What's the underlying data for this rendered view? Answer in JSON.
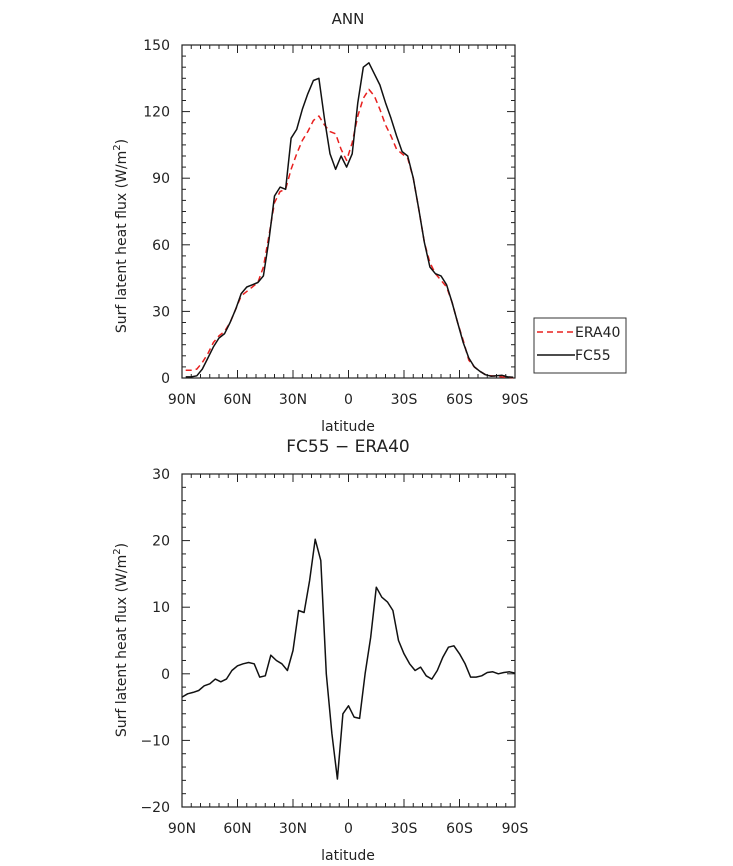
{
  "chart_data": [
    {
      "type": "line",
      "title": "ANN",
      "xlabel": "latitude",
      "ylabel": "Surf latent heat flux (W/m",
      "ylabel_sup": "2",
      "ylabel_end": ")",
      "xlim": [
        90,
        -90
      ],
      "ylim": [
        0,
        150
      ],
      "x_ticks": [
        90,
        60,
        30,
        0,
        -30,
        -60,
        -90
      ],
      "x_tick_labels": [
        "90N",
        "60N",
        "30N",
        "0",
        "30S",
        "60S",
        "90S"
      ],
      "y_ticks": [
        0,
        30,
        60,
        90,
        120,
        150
      ],
      "y_tick_labels": [
        "0",
        "30",
        "60",
        "90",
        "120",
        "150"
      ],
      "legend": "right",
      "series": [
        {
          "name": "ERA40",
          "color": "#e8201f",
          "dash": true,
          "x": [
            88,
            85,
            82,
            79,
            76,
            73,
            70,
            67,
            64,
            61,
            58,
            55,
            52,
            49,
            46,
            43,
            40,
            37,
            34,
            31,
            28,
            25,
            22,
            19,
            16,
            13,
            10,
            7,
            4,
            1,
            -2,
            -5,
            -8,
            -11,
            -14,
            -17,
            -20,
            -23,
            -26,
            -29,
            -32,
            -35,
            -38,
            -41,
            -44,
            -47,
            -50,
            -53,
            -56,
            -59,
            -62,
            -65,
            -68,
            -71,
            -74,
            -77,
            -80,
            -83,
            -86,
            -89
          ],
          "y": [
            3.5,
            3.5,
            4,
            7,
            11,
            16,
            19,
            21,
            25,
            31,
            37,
            39,
            41,
            43,
            50,
            64,
            79,
            84,
            85,
            94,
            101,
            107,
            111,
            116,
            118,
            114,
            111,
            110,
            103,
            98,
            106,
            118,
            126,
            130,
            127,
            121,
            114,
            109,
            103,
            101,
            99,
            90,
            76,
            61,
            52,
            47,
            44,
            41,
            34,
            25,
            17,
            8,
            5,
            3,
            1.5,
            1,
            0.8,
            0.5,
            0.3,
            0.2
          ]
        },
        {
          "name": "FC55",
          "color": "#111111",
          "dash": false,
          "x": [
            88,
            85,
            82,
            79,
            76,
            73,
            70,
            67,
            64,
            61,
            58,
            55,
            52,
            49,
            46,
            43,
            40,
            37,
            34,
            31,
            28,
            25,
            22,
            19,
            16,
            13,
            10,
            7,
            4,
            1,
            -2,
            -5,
            -8,
            -11,
            -14,
            -17,
            -20,
            -23,
            -26,
            -29,
            -32,
            -35,
            -38,
            -41,
            -44,
            -47,
            -50,
            -53,
            -56,
            -59,
            -62,
            -65,
            -68,
            -71,
            -74,
            -77,
            -80,
            -83,
            -86,
            -89
          ],
          "y": [
            0.5,
            0.5,
            1,
            4,
            9,
            14,
            18,
            20,
            25,
            31,
            38,
            41,
            42,
            43,
            46,
            62,
            82,
            86,
            85,
            108,
            112,
            121,
            128,
            134,
            135,
            117,
            101,
            94,
            100,
            95,
            101,
            124,
            140,
            142,
            137,
            132,
            124,
            117,
            109,
            102,
            100,
            90,
            76,
            61,
            50,
            47,
            46,
            42,
            34,
            25,
            16,
            9,
            5,
            3,
            1.5,
            0.8,
            1,
            1.2,
            0.5,
            0.3
          ]
        }
      ]
    },
    {
      "type": "line",
      "title": "FC55 − ERA40",
      "xlabel": "latitude",
      "ylabel": "Surf latent heat flux (W/m",
      "ylabel_sup": "2",
      "ylabel_end": ")",
      "xlim": [
        90,
        -90
      ],
      "ylim": [
        -20,
        30
      ],
      "x_ticks": [
        90,
        60,
        30,
        0,
        -30,
        -60,
        -90
      ],
      "x_tick_labels": [
        "90N",
        "60N",
        "30N",
        "0",
        "30S",
        "60S",
        "90S"
      ],
      "y_ticks": [
        -20,
        -10,
        0,
        10,
        20,
        30
      ],
      "y_tick_labels": [
        "−20",
        "−10",
        "0",
        "10",
        "20",
        "30"
      ],
      "series": [
        {
          "color": "#111111",
          "dash": false,
          "x": [
            90,
            87,
            84,
            81,
            78,
            75,
            72,
            69,
            66,
            63,
            60,
            57,
            54,
            51,
            48,
            45,
            42,
            39,
            36,
            33,
            30,
            27,
            24,
            21,
            18,
            15,
            12,
            9,
            6,
            3,
            0,
            -3,
            -6,
            -9,
            -12,
            -15,
            -18,
            -21,
            -24,
            -27,
            -30,
            -33,
            -36,
            -39,
            -42,
            -45,
            -48,
            -51,
            -54,
            -57,
            -60,
            -63,
            -66,
            -69,
            -72,
            -75,
            -78,
            -81,
            -84,
            -87,
            -90
          ],
          "y": [
            -3.5,
            -3,
            -2.8,
            -2.5,
            -1.8,
            -1.5,
            -0.8,
            -1.2,
            -0.8,
            0.5,
            1.2,
            1.5,
            1.7,
            1.5,
            -0.5,
            -0.3,
            2.8,
            2,
            1.5,
            0.5,
            3.5,
            9.5,
            9.2,
            14,
            20.2,
            17,
            0,
            -9,
            -15.8,
            -6,
            -4.8,
            -6.5,
            -6.7,
            0,
            5.5,
            13,
            11.5,
            10.8,
            9.5,
            5,
            3,
            1.5,
            0.5,
            1,
            -0.3,
            -0.8,
            0.5,
            2.5,
            4,
            4.2,
            3,
            1.5,
            -0.5,
            -0.5,
            -0.3,
            0.2,
            0.3,
            0,
            0.2,
            0.3,
            0.1
          ]
        }
      ]
    }
  ]
}
